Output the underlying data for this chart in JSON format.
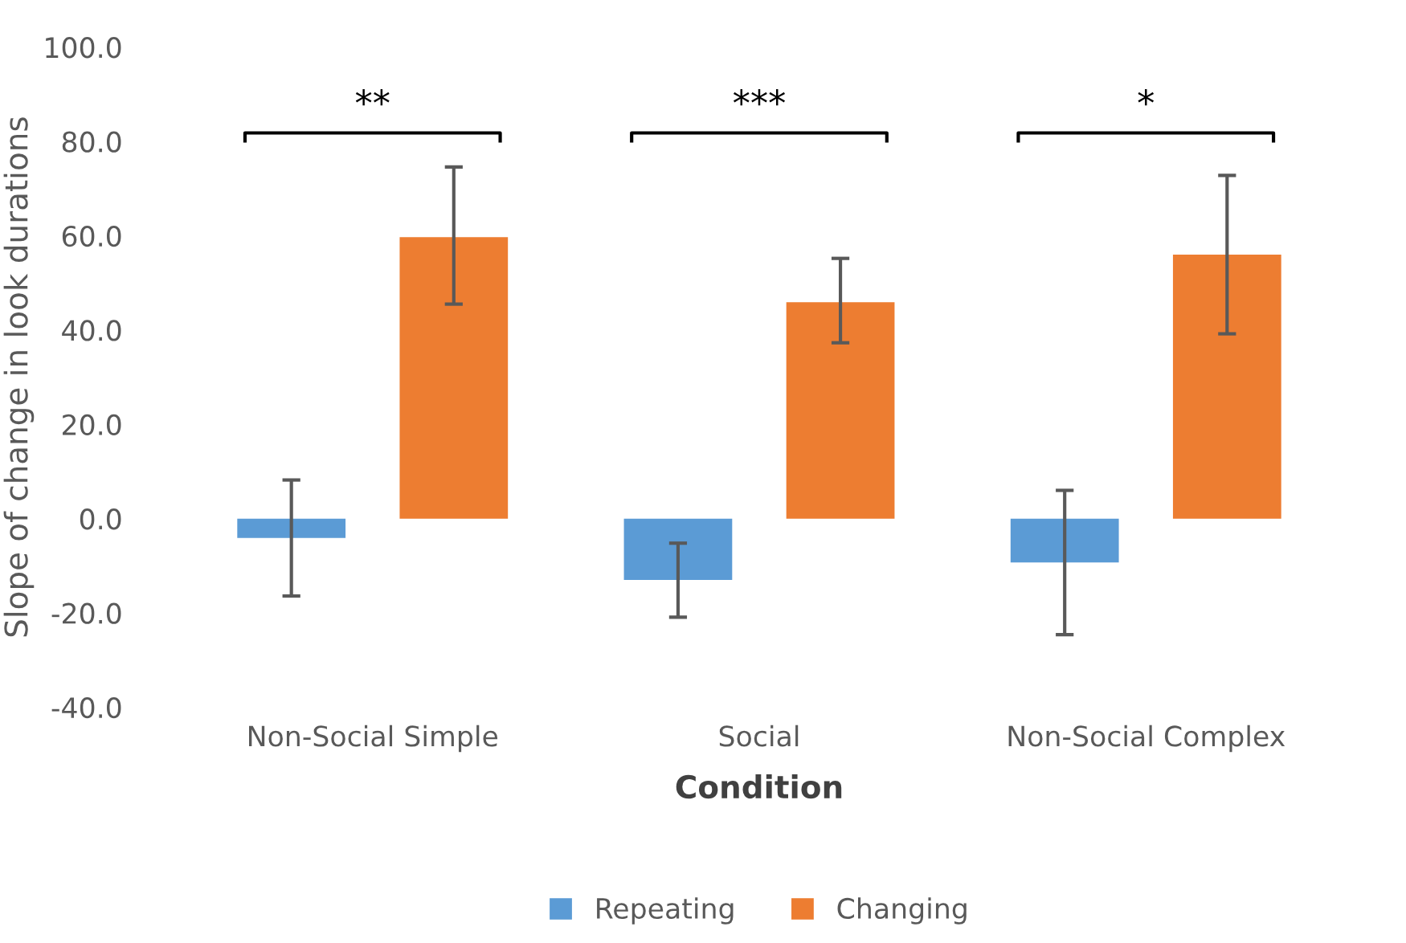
{
  "chart_data": {
    "type": "bar",
    "xlabel": "Condition",
    "ylabel": "Slope of change in look durations",
    "categories": [
      "Non-Social Simple",
      "Social",
      "Non-Social Complex"
    ],
    "series": [
      {
        "name": "Repeating",
        "color": "#5b9bd5",
        "values": [
          -4.1,
          -13.0,
          -9.3
        ],
        "errors": [
          [
            -16.4,
            8.2
          ],
          [
            -20.9,
            -5.2
          ],
          [
            -24.6,
            6.0
          ]
        ]
      },
      {
        "name": "Changing",
        "color": "#ed7d31",
        "values": [
          59.7,
          45.9,
          56.0
        ],
        "errors": [
          [
            45.5,
            74.6
          ],
          [
            37.3,
            55.2
          ],
          [
            39.2,
            72.8
          ]
        ]
      }
    ],
    "ylim": [
      -40,
      100
    ],
    "yticks": [
      {
        "value": -40,
        "label": "-40.0"
      },
      {
        "value": -20,
        "label": "-20.0"
      },
      {
        "value": 0,
        "label": "0.0"
      },
      {
        "value": 20,
        "label": "20.0"
      },
      {
        "value": 40,
        "label": "40.0"
      },
      {
        "value": 60,
        "label": "60.0"
      },
      {
        "value": 80,
        "label": "80.0"
      },
      {
        "value": 100,
        "label": "100.0"
      }
    ],
    "annotations": [
      "**",
      "***",
      "*"
    ],
    "grid": false,
    "legend": "bottom"
  }
}
